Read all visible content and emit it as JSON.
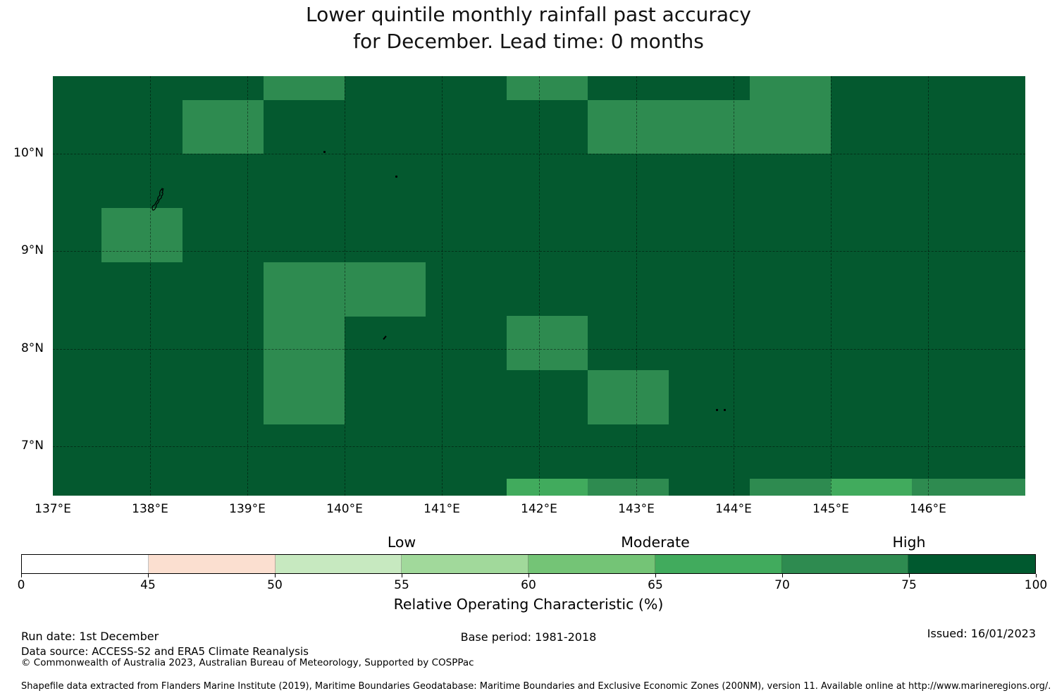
{
  "title": {
    "line1": "Lower quintile monthly rainfall past accuracy",
    "line2": "for December. Lead time: 0 months"
  },
  "chart_data": {
    "type": "heatmap",
    "title": "Lower quintile monthly rainfall past accuracy for December. Lead time: 0 months",
    "x_axis": {
      "range_deg_east": [
        137,
        147
      ],
      "ticks": [
        {
          "lon": 137,
          "label": "137°E"
        },
        {
          "lon": 138,
          "label": "138°E"
        },
        {
          "lon": 139,
          "label": "139°E"
        },
        {
          "lon": 140,
          "label": "140°E"
        },
        {
          "lon": 141,
          "label": "141°E"
        },
        {
          "lon": 142,
          "label": "142°E"
        },
        {
          "lon": 143,
          "label": "143°E"
        },
        {
          "lon": 144,
          "label": "144°E"
        },
        {
          "lon": 145,
          "label": "145°E"
        },
        {
          "lon": 146,
          "label": "146°E"
        }
      ]
    },
    "y_axis": {
      "range_deg_north": [
        6.49,
        10.8
      ],
      "ticks": [
        {
          "lat": 10,
          "label": "10°N"
        },
        {
          "lat": 9,
          "label": "9°N"
        },
        {
          "lat": 8,
          "label": "8°N"
        },
        {
          "lat": 7,
          "label": "7°N"
        }
      ]
    },
    "grid_lons": [
      138,
      139,
      140,
      141,
      142,
      143,
      144,
      145,
      146
    ],
    "grid_lats": [
      7,
      8,
      9,
      10
    ],
    "cell_size": {
      "lon_deg": 0.8333,
      "lat_deg": 0.5556
    },
    "colors": {
      "base": "#04592f",
      "medium": "#2e8b50",
      "bright": "#41ab5d"
    },
    "base_bin": "75-100",
    "cells": [
      {
        "lon": 139.167,
        "lat": 10.556,
        "level": "medium",
        "bin": "70-75"
      },
      {
        "lon": 141.667,
        "lat": 10.556,
        "level": "medium",
        "bin": "70-75"
      },
      {
        "lon": 144.167,
        "lat": 10.556,
        "level": "medium",
        "bin": "70-75"
      },
      {
        "lon": 138.333,
        "lat": 10.0,
        "level": "medium",
        "bin": "70-75"
      },
      {
        "lon": 142.5,
        "lat": 10.0,
        "level": "medium",
        "bin": "70-75"
      },
      {
        "lon": 143.333,
        "lat": 10.0,
        "level": "medium",
        "bin": "70-75"
      },
      {
        "lon": 144.167,
        "lat": 10.0,
        "level": "medium",
        "bin": "70-75"
      },
      {
        "lon": 137.5,
        "lat": 8.889,
        "level": "medium",
        "bin": "70-75"
      },
      {
        "lon": 139.167,
        "lat": 8.333,
        "level": "medium",
        "bin": "70-75"
      },
      {
        "lon": 140.0,
        "lat": 8.333,
        "level": "medium",
        "bin": "70-75"
      },
      {
        "lon": 139.167,
        "lat": 7.778,
        "level": "medium",
        "bin": "70-75"
      },
      {
        "lon": 141.667,
        "lat": 7.778,
        "level": "medium",
        "bin": "70-75"
      },
      {
        "lon": 139.167,
        "lat": 7.222,
        "level": "medium",
        "bin": "70-75"
      },
      {
        "lon": 142.5,
        "lat": 7.222,
        "level": "medium",
        "bin": "70-75"
      },
      {
        "lon": 141.667,
        "lat": 6.111,
        "level": "bright",
        "bin": "65-70"
      },
      {
        "lon": 142.5,
        "lat": 6.111,
        "level": "medium",
        "bin": "70-75"
      },
      {
        "lon": 144.167,
        "lat": 6.111,
        "level": "medium",
        "bin": "70-75"
      },
      {
        "lon": 145.0,
        "lat": 6.111,
        "level": "bright",
        "bin": "65-70"
      },
      {
        "lon": 145.833,
        "lat": 6.111,
        "level": "medium",
        "bin": "70-75"
      },
      {
        "lon": 146.667,
        "lat": 6.111,
        "level": "medium",
        "bin": "70-75"
      }
    ],
    "islands": [
      {
        "lon": 138.1,
        "lat": 9.53,
        "kind": "outline"
      },
      {
        "lon": 139.79,
        "lat": 10.02,
        "kind": "dot"
      },
      {
        "lon": 140.53,
        "lat": 9.77,
        "kind": "dot"
      },
      {
        "lon": 140.41,
        "lat": 8.11,
        "kind": "dash"
      },
      {
        "lon": 143.83,
        "lat": 7.37,
        "kind": "dot"
      },
      {
        "lon": 143.91,
        "lat": 7.37,
        "kind": "dot"
      }
    ],
    "colorbar": {
      "boundaries": [
        "0",
        "45",
        "50",
        "55",
        "60",
        "65",
        "70",
        "75",
        "100"
      ],
      "segment_colors": [
        "#ffffff",
        "#fbdfd0",
        "#c7e9c0",
        "#a1d99b",
        "#74c476",
        "#41ab5d",
        "#2e8b50",
        "#00592f"
      ],
      "band_labels": [
        {
          "label": "Low",
          "at": "55"
        },
        {
          "label": "Moderate",
          "at": "65"
        },
        {
          "label": "High",
          "at": "75"
        }
      ],
      "axis_label": "Relative Operating Characteristic (%)"
    }
  },
  "footer": {
    "run_date": "Run date: 1st December",
    "data_source": "Data source: ACCESS-S2 and ERA5 Climate Reanalysis",
    "copyright": "© Commonwealth of Australia 2023, Australian Bureau of Meteorology, Supported by COSPPac",
    "base_period": "Base period: 1981-2018",
    "issued": "Issued: 16/01/2023",
    "shapefile": "Shapefile data extracted from Flanders Marine Institute (2019), Maritime Boundaries Geodatabase: Maritime Boundaries and Exclusive Economic Zones (200NM), version 11. Available online at http://www.marineregions.org/."
  }
}
